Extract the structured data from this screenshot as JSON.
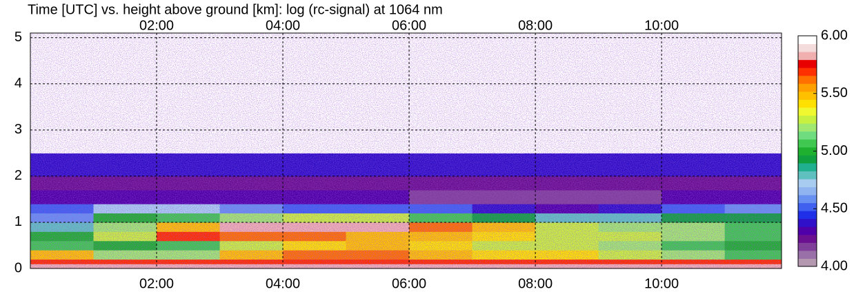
{
  "chart_data": {
    "type": "heatmap",
    "title": "Time [UTC] vs. height above ground [km]: log (rc-signal) at  1064 nm",
    "x_bins": [
      0,
      1,
      2,
      3,
      4,
      5,
      6,
      7,
      8,
      9,
      10,
      11,
      11.9
    ],
    "y_bins": [
      0,
      0.1,
      0.2,
      0.4,
      0.6,
      0.8,
      1.0,
      1.2,
      1.4,
      1.7,
      2.0,
      2.5,
      3.0,
      4.0,
      5.1
    ],
    "values": [
      [
        5.8,
        5.8,
        5.8,
        5.8,
        5.8,
        5.8,
        5.8,
        5.8,
        5.8,
        5.8,
        5.8,
        5.8
      ],
      [
        5.7,
        5.7,
        5.7,
        5.7,
        5.7,
        5.7,
        5.7,
        5.7,
        5.7,
        5.7,
        5.7,
        5.7
      ],
      [
        5.5,
        5.2,
        5.2,
        5.5,
        5.6,
        5.6,
        5.5,
        5.4,
        5.4,
        5.3,
        5.2,
        5.1
      ],
      [
        5.1,
        5.0,
        5.1,
        5.3,
        5.4,
        5.5,
        5.4,
        5.3,
        5.3,
        5.2,
        5.1,
        5.0
      ],
      [
        5.0,
        5.3,
        5.7,
        5.6,
        5.6,
        5.5,
        5.5,
        5.4,
        5.3,
        5.3,
        5.2,
        5.1
      ],
      [
        4.8,
        5.2,
        5.5,
        5.8,
        5.8,
        5.8,
        5.6,
        5.5,
        5.3,
        5.2,
        5.2,
        5.1
      ],
      [
        4.6,
        5.0,
        5.1,
        5.2,
        5.3,
        5.3,
        5.1,
        4.9,
        4.8,
        4.8,
        4.9,
        4.9
      ],
      [
        4.5,
        4.7,
        4.7,
        4.6,
        4.5,
        4.5,
        4.5,
        4.4,
        4.3,
        4.4,
        4.5,
        4.6
      ],
      [
        4.3,
        4.3,
        4.3,
        4.3,
        4.3,
        4.3,
        4.2,
        4.2,
        4.2,
        4.2,
        4.3,
        4.3
      ],
      [
        4.25,
        4.25,
        4.25,
        4.25,
        4.25,
        4.25,
        4.25,
        4.25,
        4.25,
        4.25,
        4.25,
        4.25
      ],
      [
        4.35,
        4.35,
        4.35,
        4.35,
        4.35,
        4.35,
        4.35,
        4.35,
        4.35,
        4.35,
        4.35,
        4.35
      ],
      [
        6.0,
        6.0,
        6.0,
        6.0,
        6.0,
        6.0,
        6.0,
        6.0,
        6.0,
        6.0,
        6.0,
        6.0
      ],
      [
        6.0,
        6.0,
        6.0,
        6.0,
        6.0,
        6.0,
        6.0,
        6.0,
        6.0,
        6.0,
        6.0,
        6.0
      ],
      [
        6.0,
        6.0,
        6.0,
        6.0,
        6.0,
        6.0,
        6.0,
        6.0,
        6.0,
        6.0,
        6.0,
        6.0
      ]
    ],
    "xlim": [
      0,
      11.9
    ],
    "ylim": [
      0,
      5.1
    ],
    "xticks": [
      {
        "value": 2,
        "label": "02:00"
      },
      {
        "value": 4,
        "label": "04:00"
      },
      {
        "value": 6,
        "label": "06:00"
      },
      {
        "value": 8,
        "label": "08:00"
      },
      {
        "value": 10,
        "label": "10:00"
      }
    ],
    "yticks": [
      0,
      1,
      2,
      3,
      4,
      5
    ],
    "clim": [
      4,
      6
    ],
    "cticks": [
      {
        "value": 4,
        "label": "4.00"
      },
      {
        "value": 4.5,
        "label": "4.50"
      },
      {
        "value": 5,
        "label": "5.00"
      },
      {
        "value": 5.5,
        "label": "5.50"
      },
      {
        "value": 6,
        "label": "6.00"
      }
    ],
    "colormap": [
      "#b498b0",
      "#9a70a8",
      "#80409a",
      "#6a1090",
      "#5000a8",
      "#3010c8",
      "#2030e8",
      "#4060f0",
      "#6890f0",
      "#90b4f0",
      "#a8ccf0",
      "#60c0c0",
      "#20b090",
      "#10a040",
      "#20b030",
      "#40c850",
      "#70dc80",
      "#a0e870",
      "#c8f040",
      "#f0f830",
      "#ffe000",
      "#ffc000",
      "#ffa000",
      "#ff7000",
      "#ff3000",
      "#e80000",
      "#f0b0b0",
      "#f4dcdc",
      "#ffffff"
    ],
    "grid": true
  }
}
